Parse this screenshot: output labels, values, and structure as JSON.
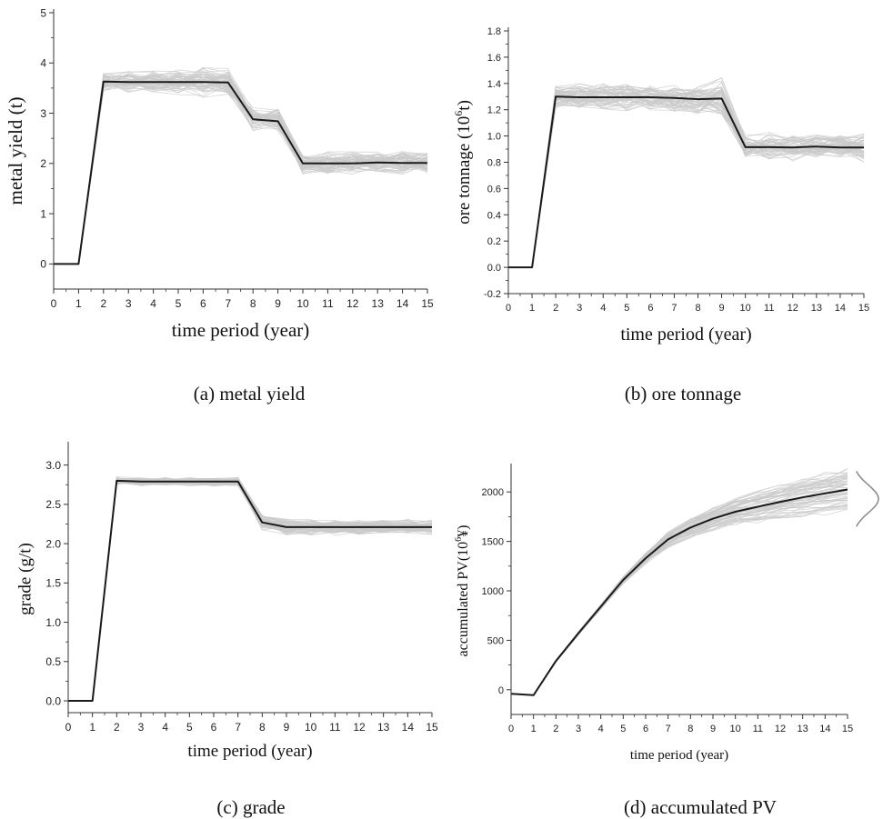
{
  "chart_data": [
    {
      "id": "a",
      "type": "line",
      "caption": "(a) metal yield",
      "xlabel": "time period (year)",
      "ylabel": "metal yield (t)",
      "xlim": [
        0,
        15
      ],
      "ylim": [
        -0.5,
        5
      ],
      "xticks": [
        0,
        1,
        2,
        3,
        4,
        5,
        6,
        7,
        8,
        9,
        10,
        11,
        12,
        13,
        14,
        15
      ],
      "yticks": [
        0,
        1,
        2,
        3,
        4,
        5
      ],
      "x": [
        0,
        1,
        2,
        3,
        4,
        5,
        6,
        7,
        8,
        9,
        10,
        11,
        12,
        13,
        14,
        15
      ],
      "series": [
        {
          "style": "main",
          "values": [
            0,
            0,
            3.63,
            3.62,
            3.62,
            3.62,
            3.62,
            3.61,
            2.88,
            2.84,
            2.0,
            2.0,
            2.0,
            2.02,
            2.01,
            2.01
          ]
        },
        {
          "style": "simulations",
          "count": 60,
          "start_index": 2,
          "spread": [
            0,
            0,
            0.18,
            0.22,
            0.22,
            0.24,
            0.28,
            0.26,
            0.22,
            0.24,
            0.2,
            0.22,
            0.22,
            0.2,
            0.22,
            0.22
          ]
        }
      ],
      "grid": false
    },
    {
      "id": "b",
      "type": "line",
      "caption": "(b) ore tonnage",
      "xlabel": "time period (year)",
      "ylabel": "ore tonnage (10",
      "ylabel_sup": "6",
      "ylabel_end": "t)",
      "xlim": [
        0,
        15
      ],
      "ylim": [
        -0.2,
        1.8
      ],
      "xticks": [
        0,
        1,
        2,
        3,
        4,
        5,
        6,
        7,
        8,
        9,
        10,
        11,
        12,
        13,
        14,
        15
      ],
      "yticks": [
        -0.2,
        0.0,
        0.2,
        0.4,
        0.6,
        0.8,
        1.0,
        1.2,
        1.4,
        1.6,
        1.8
      ],
      "ytick_labels": [
        "-0.2",
        "0.0",
        "0.2",
        "0.4",
        "0.6",
        "0.8",
        "1.0",
        "1.2",
        "1.4",
        "1.6",
        "1.8"
      ],
      "x": [
        0,
        1,
        2,
        3,
        4,
        5,
        6,
        7,
        8,
        9,
        10,
        11,
        12,
        13,
        14,
        15
      ],
      "series": [
        {
          "style": "main",
          "values": [
            0,
            0,
            1.3,
            1.295,
            1.295,
            1.295,
            1.295,
            1.29,
            1.28,
            1.285,
            0.915,
            0.915,
            0.913,
            0.92,
            0.912,
            0.912
          ]
        },
        {
          "style": "simulations",
          "count": 60,
          "start_index": 2,
          "spread": [
            0,
            0,
            0.09,
            0.1,
            0.1,
            0.1,
            0.1,
            0.1,
            0.11,
            0.16,
            0.09,
            0.11,
            0.1,
            0.09,
            0.1,
            0.12
          ]
        }
      ],
      "grid": false
    },
    {
      "id": "c",
      "type": "line",
      "caption": "(c) grade",
      "xlabel": "time period (year)",
      "ylabel": "grade (g/t)",
      "xlim": [
        0,
        15
      ],
      "ylim": [
        -0.15,
        3.25
      ],
      "xticks": [
        0,
        1,
        2,
        3,
        4,
        5,
        6,
        7,
        8,
        9,
        10,
        11,
        12,
        13,
        14,
        15
      ],
      "yticks": [
        0.0,
        0.5,
        1.0,
        1.5,
        2.0,
        2.5,
        3.0
      ],
      "ytick_labels": [
        "0.0",
        "0.5",
        "1.0",
        "1.5",
        "2.0",
        "2.5",
        "3.0"
      ],
      "x": [
        0,
        1,
        2,
        3,
        4,
        5,
        6,
        7,
        8,
        9,
        10,
        11,
        12,
        13,
        14,
        15
      ],
      "series": [
        {
          "style": "main",
          "values": [
            0,
            0,
            2.8,
            2.79,
            2.79,
            2.79,
            2.79,
            2.79,
            2.27,
            2.21,
            2.21,
            2.21,
            2.21,
            2.21,
            2.21,
            2.21
          ]
        },
        {
          "style": "simulations",
          "count": 60,
          "start_index": 2,
          "spread": [
            0,
            0,
            0.05,
            0.05,
            0.05,
            0.05,
            0.06,
            0.05,
            0.09,
            0.1,
            0.1,
            0.1,
            0.1,
            0.09,
            0.1,
            0.1
          ]
        }
      ],
      "grid": false
    },
    {
      "id": "d",
      "type": "line",
      "caption": "(d) accumulated PV",
      "xlabel": "time period (year)",
      "ylabel": "accumulated PV(10",
      "ylabel_sup": "6",
      "ylabel_end": "¥)",
      "xlim": [
        0,
        15
      ],
      "ylim": [
        -250,
        2250
      ],
      "xticks": [
        0,
        1,
        2,
        3,
        4,
        5,
        6,
        7,
        8,
        9,
        10,
        11,
        12,
        13,
        14,
        15
      ],
      "yticks": [
        0,
        500,
        1000,
        1500,
        2000
      ],
      "x": [
        0,
        1,
        2,
        3,
        4,
        5,
        6,
        7,
        8,
        9,
        10,
        11,
        12,
        13,
        14,
        15
      ],
      "series": [
        {
          "style": "main",
          "values": [
            -40,
            -55,
            290,
            570,
            840,
            1110,
            1330,
            1520,
            1640,
            1730,
            1800,
            1850,
            1900,
            1945,
            1985,
            2025
          ]
        },
        {
          "style": "simulations",
          "count": 60,
          "start_index": 1,
          "spread": [
            0,
            0,
            15,
            25,
            35,
            50,
            70,
            90,
            110,
            125,
            140,
            150,
            160,
            170,
            175,
            180
          ]
        }
      ],
      "distribution_curve": true,
      "grid": false
    }
  ]
}
